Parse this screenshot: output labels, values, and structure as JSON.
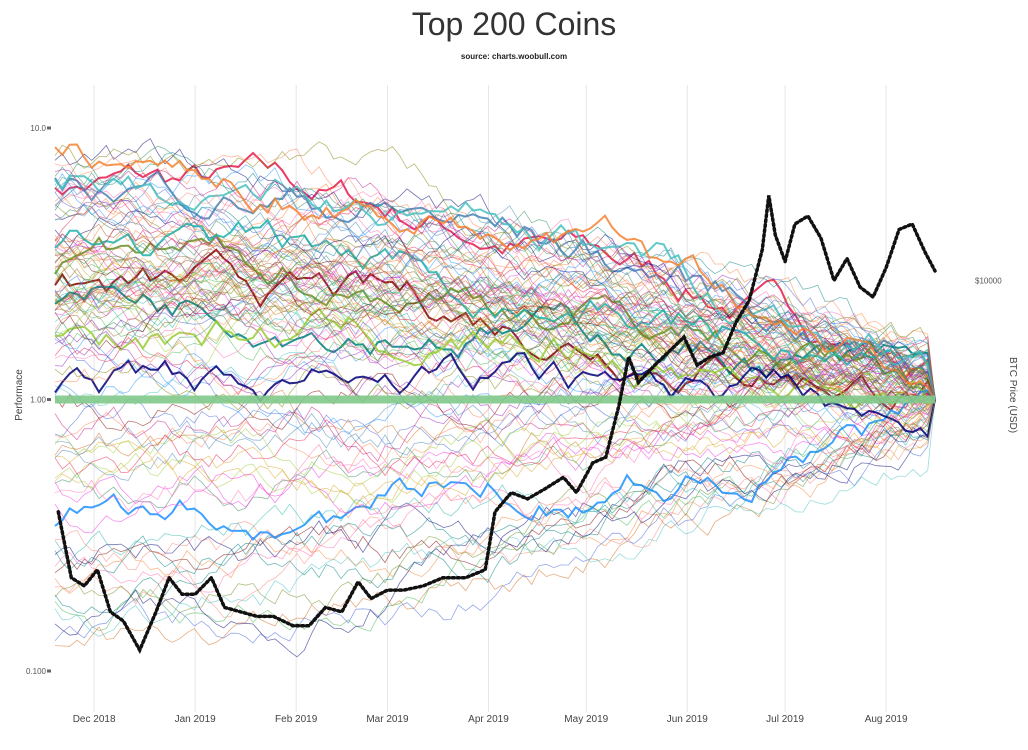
{
  "chart_data": {
    "type": "line",
    "title": "Top 200 Coins",
    "subtitle": "source: charts.woobull.com",
    "ylabel": "Performace",
    "y2label": "BTC Price (USD)",
    "y_scale": "log",
    "ylim": [
      0.1,
      10
    ],
    "y_ticks": [
      {
        "value": 10,
        "label": "10.0"
      },
      {
        "value": 1,
        "label": "1.00"
      },
      {
        "value": 0.1,
        "label": "0.100"
      }
    ],
    "y2_ticks": [
      {
        "value": 10000,
        "label": "$10000"
      }
    ],
    "x_ticks": [
      "Dec 2018",
      "Jan 2019",
      "Feb 2019",
      "Mar 2019",
      "Apr 2019",
      "May 2019",
      "Jun 2019",
      "Jul 2019",
      "Aug 2019"
    ],
    "grid": "vertical",
    "legend": "none",
    "reference_line": {
      "value": 1.0,
      "color": "#7fc98a"
    },
    "series": [
      {
        "name": "BTC Price (USD)",
        "axis": "right",
        "style": "dotted",
        "color": "#111111",
        "points": [
          {
            "x": "2018-11-20",
            "y": 4900
          },
          {
            "x": "2018-11-24",
            "y": 4000
          },
          {
            "x": "2018-11-28",
            "y": 3900
          },
          {
            "x": "2018-12-02",
            "y": 4100
          },
          {
            "x": "2018-12-06",
            "y": 3600
          },
          {
            "x": "2018-12-10",
            "y": 3500
          },
          {
            "x": "2018-12-15",
            "y": 3200
          },
          {
            "x": "2018-12-20",
            "y": 3600
          },
          {
            "x": "2018-12-24",
            "y": 4000
          },
          {
            "x": "2018-12-28",
            "y": 3800
          },
          {
            "x": "2019-01-01",
            "y": 3800
          },
          {
            "x": "2019-01-06",
            "y": 4000
          },
          {
            "x": "2019-01-10",
            "y": 3650
          },
          {
            "x": "2019-01-15",
            "y": 3600
          },
          {
            "x": "2019-01-20",
            "y": 3550
          },
          {
            "x": "2019-01-25",
            "y": 3550
          },
          {
            "x": "2019-01-31",
            "y": 3450
          },
          {
            "x": "2019-02-05",
            "y": 3450
          },
          {
            "x": "2019-02-10",
            "y": 3650
          },
          {
            "x": "2019-02-15",
            "y": 3600
          },
          {
            "x": "2019-02-20",
            "y": 3950
          },
          {
            "x": "2019-02-24",
            "y": 3750
          },
          {
            "x": "2019-03-01",
            "y": 3850
          },
          {
            "x": "2019-03-06",
            "y": 3850
          },
          {
            "x": "2019-03-12",
            "y": 3900
          },
          {
            "x": "2019-03-18",
            "y": 4000
          },
          {
            "x": "2019-03-25",
            "y": 4000
          },
          {
            "x": "2019-03-31",
            "y": 4100
          },
          {
            "x": "2019-04-03",
            "y": 4900
          },
          {
            "x": "2019-04-08",
            "y": 5200
          },
          {
            "x": "2019-04-13",
            "y": 5100
          },
          {
            "x": "2019-04-18",
            "y": 5250
          },
          {
            "x": "2019-04-24",
            "y": 5450
          },
          {
            "x": "2019-04-28",
            "y": 5200
          },
          {
            "x": "2019-05-03",
            "y": 5700
          },
          {
            "x": "2019-05-07",
            "y": 5800
          },
          {
            "x": "2019-05-11",
            "y": 6800
          },
          {
            "x": "2019-05-14",
            "y": 7900
          },
          {
            "x": "2019-05-17",
            "y": 7300
          },
          {
            "x": "2019-05-22",
            "y": 7700
          },
          {
            "x": "2019-05-26",
            "y": 8000
          },
          {
            "x": "2019-05-31",
            "y": 8400
          },
          {
            "x": "2019-06-04",
            "y": 7700
          },
          {
            "x": "2019-06-08",
            "y": 7900
          },
          {
            "x": "2019-06-12",
            "y": 8000
          },
          {
            "x": "2019-06-16",
            "y": 8800
          },
          {
            "x": "2019-06-20",
            "y": 9400
          },
          {
            "x": "2019-06-24",
            "y": 11000
          },
          {
            "x": "2019-06-26",
            "y": 13000
          },
          {
            "x": "2019-06-28",
            "y": 11500
          },
          {
            "x": "2019-07-01",
            "y": 10600
          },
          {
            "x": "2019-07-04",
            "y": 11900
          },
          {
            "x": "2019-07-08",
            "y": 12200
          },
          {
            "x": "2019-07-12",
            "y": 11400
          },
          {
            "x": "2019-07-16",
            "y": 10000
          },
          {
            "x": "2019-07-20",
            "y": 10700
          },
          {
            "x": "2019-07-24",
            "y": 9800
          },
          {
            "x": "2019-07-28",
            "y": 9500
          },
          {
            "x": "2019-08-01",
            "y": 10400
          },
          {
            "x": "2019-08-05",
            "y": 11700
          },
          {
            "x": "2019-08-09",
            "y": 11900
          },
          {
            "x": "2019-08-13",
            "y": 10900
          },
          {
            "x": "2019-08-16",
            "y": 10300
          }
        ]
      }
    ]
  },
  "background_coin_series_count": 120
}
